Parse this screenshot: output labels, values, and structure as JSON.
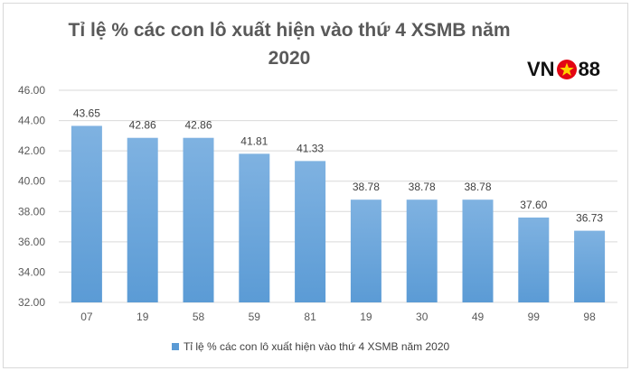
{
  "logo": {
    "prefix": "VN",
    "suffix": "88"
  },
  "legend_label": "Tỉ lệ % các con lô xuất hiện vào thứ 4 XSMB năm 2020",
  "colors": {
    "bar": "#5b9bd5",
    "bar_light": "#7fb2e1",
    "grid": "#d9d9d9",
    "logo_red": "#e30613",
    "logo_star": "#ffd200"
  },
  "chart_data": {
    "type": "bar",
    "title": "Tỉ lệ % các con lô xuất hiện vào thứ 4 XSMB năm 2020",
    "categories": [
      "07",
      "19",
      "58",
      "59",
      "81",
      "19",
      "30",
      "49",
      "99",
      "98"
    ],
    "series": [
      {
        "name": "Tỉ lệ % các con lô xuất hiện vào thứ 4 XSMB năm 2020",
        "values": [
          43.65,
          42.86,
          42.86,
          41.81,
          41.33,
          38.78,
          38.78,
          38.78,
          37.6,
          36.73
        ]
      }
    ],
    "value_labels": [
      "43.65",
      "42.86",
      "42.86",
      "41.81",
      "41.33",
      "38.78",
      "38.78",
      "38.78",
      "37.60",
      "36.73"
    ],
    "yticks": [
      "32.00",
      "34.00",
      "36.00",
      "38.00",
      "40.00",
      "42.00",
      "44.00",
      "46.00"
    ],
    "ylim": [
      32,
      46
    ],
    "grid": true,
    "legend_position": "bottom"
  }
}
